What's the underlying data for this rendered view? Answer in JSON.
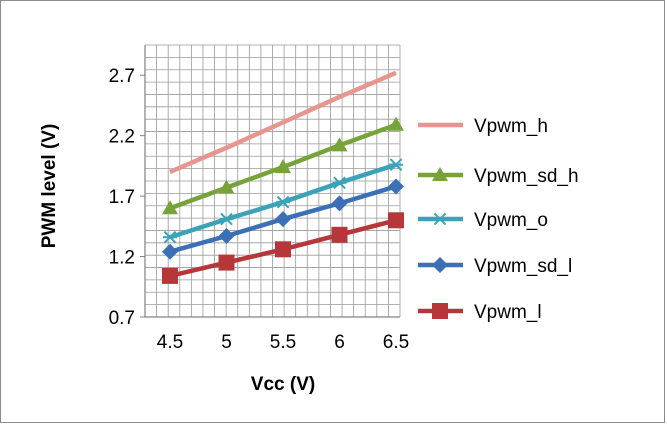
{
  "chart_data": {
    "type": "line",
    "title": "",
    "xlabel": "Vcc (V)",
    "ylabel": "PWM level (V)",
    "x": [
      4.5,
      5,
      5.5,
      6,
      6.5
    ],
    "x_tick_labels": [
      "4.5",
      "5",
      "5.5",
      "6",
      "6.5"
    ],
    "y_ticks": [
      0.7,
      1.2,
      1.7,
      2.2,
      2.7
    ],
    "y_tick_labels": [
      "0.7",
      "1.2",
      "1.7",
      "2.2",
      "2.7"
    ],
    "xlim": [
      4.5,
      6.5
    ],
    "ylim": [
      0.7,
      2.95
    ],
    "grid": true,
    "legend_position": "right",
    "series": [
      {
        "name": "Vpwm_h",
        "color": "#E6958F",
        "marker": "none",
        "values": [
          1.9,
          2.1,
          2.31,
          2.52,
          2.72
        ]
      },
      {
        "name": "Vpwm_sd_h",
        "color": "#77A33A",
        "marker": "triangle",
        "values": [
          1.6,
          1.77,
          1.94,
          2.12,
          2.29
        ]
      },
      {
        "name": "Vpwm_o",
        "color": "#3AA3B8",
        "marker": "star",
        "values": [
          1.36,
          1.51,
          1.65,
          1.81,
          1.96
        ]
      },
      {
        "name": "Vpwm_sd_l",
        "color": "#3B6FB6",
        "marker": "diamond",
        "values": [
          1.24,
          1.37,
          1.51,
          1.64,
          1.78
        ]
      },
      {
        "name": "Vpwm_l",
        "color": "#B6373A",
        "marker": "square",
        "values": [
          1.04,
          1.15,
          1.26,
          1.38,
          1.5
        ]
      }
    ]
  }
}
